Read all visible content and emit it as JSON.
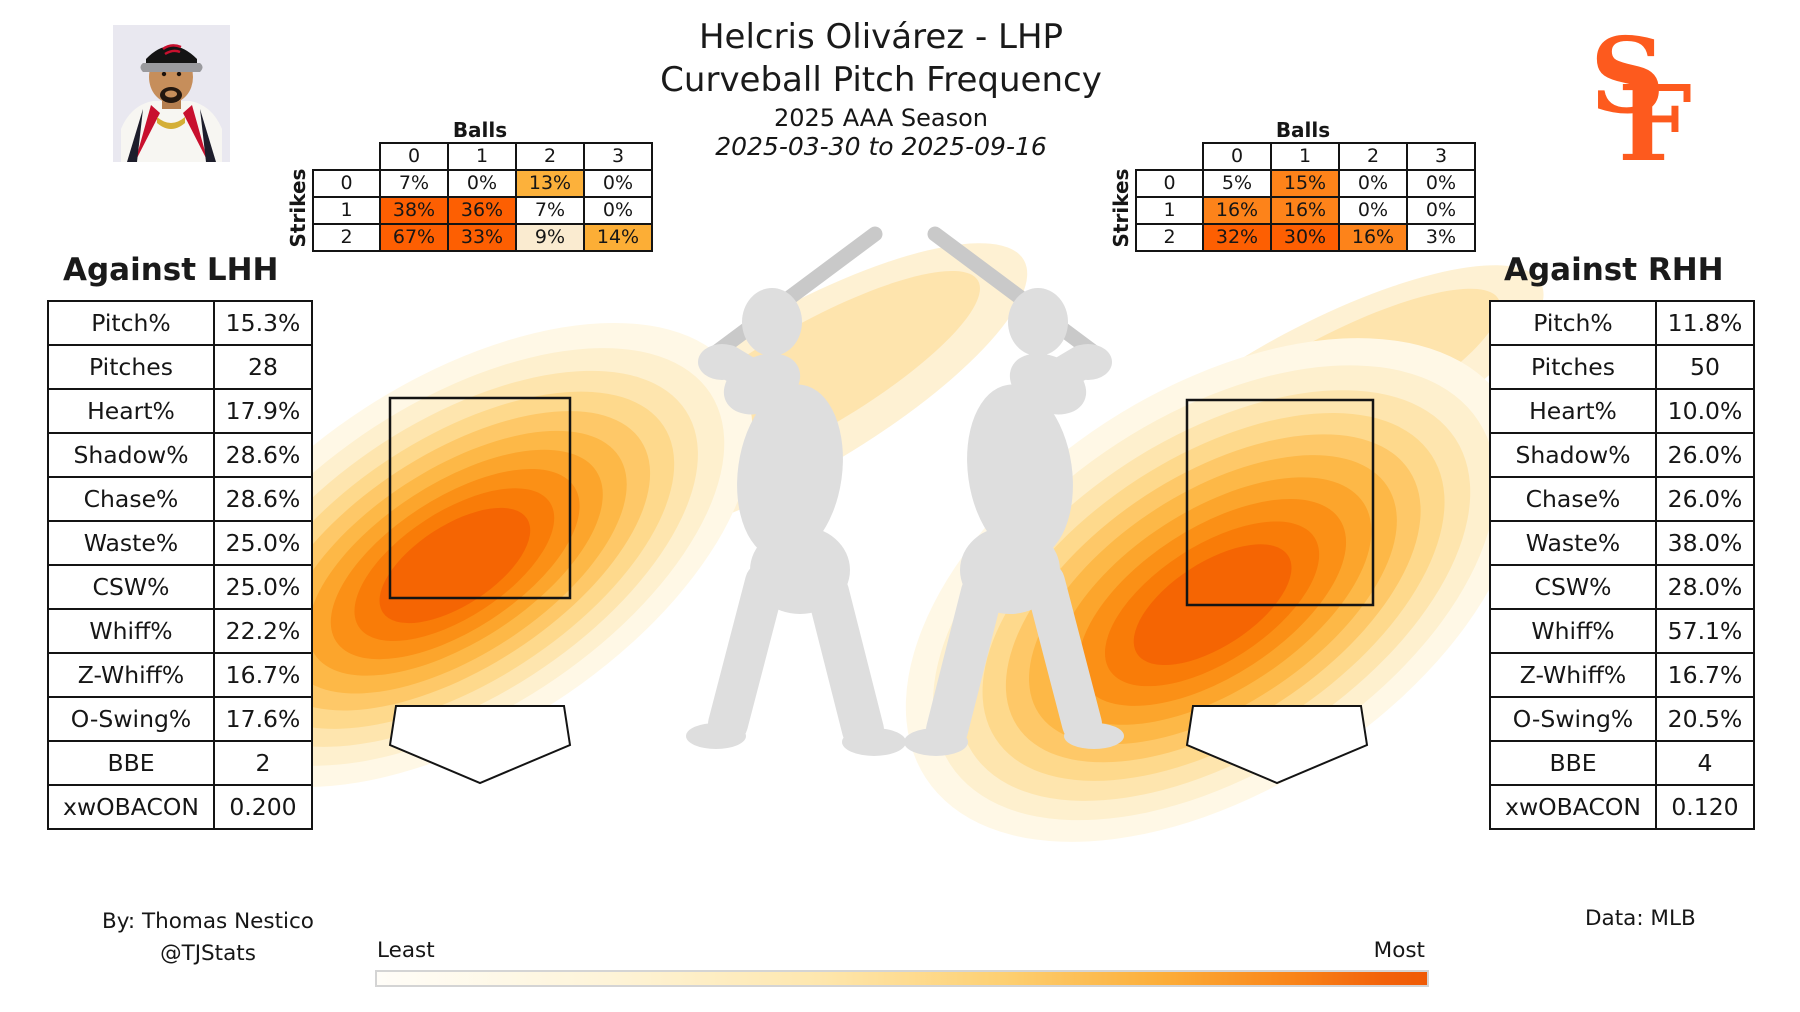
{
  "header": {
    "title_line1": "Helcris Olivárez - LHP",
    "title_line2": "Curveball Pitch Frequency",
    "season_line": "2025 AAA Season",
    "date_range": "2025-03-30 to 2025-09-16",
    "logo_s": "S",
    "logo_f": "F",
    "team_logo_color": "#fd5a1e"
  },
  "count_grids": {
    "balls_label": "Balls",
    "strikes_label": "Strikes",
    "col_headers": [
      "0",
      "1",
      "2",
      "3"
    ],
    "row_headers": [
      "0",
      "1",
      "2"
    ],
    "lhh": {
      "rows": [
        [
          {
            "v": "7%",
            "bg": "#ffffff"
          },
          {
            "v": "0%",
            "bg": "#ffffff"
          },
          {
            "v": "13%",
            "bg": "#fcb13b"
          },
          {
            "v": "0%",
            "bg": "#ffffff"
          }
        ],
        [
          {
            "v": "38%",
            "bg": "#fd5f02"
          },
          {
            "v": "36%",
            "bg": "#fd5f02"
          },
          {
            "v": "7%",
            "bg": "#ffffff"
          },
          {
            "v": "0%",
            "bg": "#ffffff"
          }
        ],
        [
          {
            "v": "67%",
            "bg": "#fd5f02"
          },
          {
            "v": "33%",
            "bg": "#fd5f02"
          },
          {
            "v": "9%",
            "bg": "#faebd0"
          },
          {
            "v": "14%",
            "bg": "#fcae36"
          }
        ]
      ]
    },
    "rhh": {
      "rows": [
        [
          {
            "v": "5%",
            "bg": "#ffffff"
          },
          {
            "v": "15%",
            "bg": "#fd831a"
          },
          {
            "v": "0%",
            "bg": "#ffffff"
          },
          {
            "v": "0%",
            "bg": "#ffffff"
          }
        ],
        [
          {
            "v": "16%",
            "bg": "#fd831a"
          },
          {
            "v": "16%",
            "bg": "#fd831a"
          },
          {
            "v": "0%",
            "bg": "#ffffff"
          },
          {
            "v": "0%",
            "bg": "#ffffff"
          }
        ],
        [
          {
            "v": "32%",
            "bg": "#fd5f02"
          },
          {
            "v": "30%",
            "bg": "#fd5f02"
          },
          {
            "v": "16%",
            "bg": "#fd831a"
          },
          {
            "v": "3%",
            "bg": "#ffffff"
          }
        ]
      ]
    }
  },
  "sides": {
    "lhh": {
      "heading": "Against LHH",
      "stats": [
        [
          "Pitch%",
          "15.3%"
        ],
        [
          "Pitches",
          "28"
        ],
        [
          "Heart%",
          "17.9%"
        ],
        [
          "Shadow%",
          "28.6%"
        ],
        [
          "Chase%",
          "28.6%"
        ],
        [
          "Waste%",
          "25.0%"
        ],
        [
          "CSW%",
          "25.0%"
        ],
        [
          "Whiff%",
          "22.2%"
        ],
        [
          "Z-Whiff%",
          "16.7%"
        ],
        [
          "O-Swing%",
          "17.6%"
        ],
        [
          "BBE",
          "2"
        ],
        [
          "xwOBACON",
          "0.200"
        ]
      ]
    },
    "rhh": {
      "heading": "Against RHH",
      "stats": [
        [
          "Pitch%",
          "11.8%"
        ],
        [
          "Pitches",
          "50"
        ],
        [
          "Heart%",
          "10.0%"
        ],
        [
          "Shadow%",
          "26.0%"
        ],
        [
          "Chase%",
          "26.0%"
        ],
        [
          "Waste%",
          "38.0%"
        ],
        [
          "CSW%",
          "28.0%"
        ],
        [
          "Whiff%",
          "57.1%"
        ],
        [
          "Z-Whiff%",
          "16.7%"
        ],
        [
          "O-Swing%",
          "20.5%"
        ],
        [
          "BBE",
          "4"
        ],
        [
          "xwOBACON",
          "0.120"
        ]
      ]
    }
  },
  "footer": {
    "credit_line1": "By: Thomas Nestico",
    "credit_line2": "@TJStats",
    "legend_least": "Least",
    "legend_most": "Most",
    "data_source": "Data: MLB"
  },
  "palette": {
    "deep_orange": "#f25c05",
    "amber": "#fdb847",
    "cream": "#fee5ae",
    "giants_orange": "#fd5a1e",
    "silhouette_gray": "#dedede",
    "bat_gray": "#c9c9c9"
  },
  "chart_data": [
    {
      "type": "heatmap",
      "name": "pitch_location_density_lhh",
      "title": "Against LHH",
      "subject": "Curveball pitch location frequency vs left-handed hitters (catcher view)",
      "density_peak": "low and arm-side, lower-left quadrant of the strike zone",
      "spread": "diagonal band running from low-left below the zone up toward high-right",
      "legend": [
        "Least",
        "Most"
      ],
      "colormap": [
        "#ffffff",
        "#fee5ae",
        "#fdb847",
        "#f97c08",
        "#f25c05"
      ]
    },
    {
      "type": "heatmap",
      "name": "pitch_location_density_rhh",
      "title": "Against RHH",
      "subject": "Curveball pitch location frequency vs right-handed hitters (catcher view)",
      "density_peak": "low-middle of the strike zone, densest just below zone center",
      "spread": "diagonal band from low-left near batter's feet up toward high-right above the zone",
      "legend": [
        "Least",
        "Most"
      ],
      "colormap": [
        "#ffffff",
        "#fee5ae",
        "#fdb847",
        "#f97c08",
        "#f25c05"
      ]
    },
    {
      "type": "heatmap",
      "name": "count_frequency_lhh",
      "x_label": "Balls",
      "y_label": "Strikes",
      "x_ticks": [
        "0",
        "1",
        "2",
        "3"
      ],
      "y_ticks": [
        "0",
        "1",
        "2"
      ],
      "unit": "%",
      "values": [
        [
          7,
          0,
          13,
          0
        ],
        [
          38,
          36,
          7,
          0
        ],
        [
          67,
          33,
          9,
          14
        ]
      ]
    },
    {
      "type": "heatmap",
      "name": "count_frequency_rhh",
      "x_label": "Balls",
      "y_label": "Strikes",
      "x_ticks": [
        "0",
        "1",
        "2",
        "3"
      ],
      "y_ticks": [
        "0",
        "1",
        "2"
      ],
      "unit": "%",
      "values": [
        [
          5,
          15,
          0,
          0
        ],
        [
          16,
          16,
          0,
          0
        ],
        [
          32,
          30,
          16,
          3
        ]
      ]
    },
    {
      "type": "table",
      "name": "stats_against_lhh",
      "rows": [
        [
          "Pitch%",
          "15.3%"
        ],
        [
          "Pitches",
          "28"
        ],
        [
          "Heart%",
          "17.9%"
        ],
        [
          "Shadow%",
          "28.6%"
        ],
        [
          "Chase%",
          "28.6%"
        ],
        [
          "Waste%",
          "25.0%"
        ],
        [
          "CSW%",
          "25.0%"
        ],
        [
          "Whiff%",
          "22.2%"
        ],
        [
          "Z-Whiff%",
          "16.7%"
        ],
        [
          "O-Swing%",
          "17.6%"
        ],
        [
          "BBE",
          "2"
        ],
        [
          "xwOBACON",
          "0.200"
        ]
      ]
    },
    {
      "type": "table",
      "name": "stats_against_rhh",
      "rows": [
        [
          "Pitch%",
          "11.8%"
        ],
        [
          "Pitches",
          "50"
        ],
        [
          "Heart%",
          "10.0%"
        ],
        [
          "Shadow%",
          "26.0%"
        ],
        [
          "Chase%",
          "26.0%"
        ],
        [
          "Waste%",
          "38.0%"
        ],
        [
          "CSW%",
          "28.0%"
        ],
        [
          "Whiff%",
          "57.1%"
        ],
        [
          "Z-Whiff%",
          "16.7%"
        ],
        [
          "O-Swing%",
          "20.5%"
        ],
        [
          "BBE",
          "4"
        ],
        [
          "xwOBACON",
          "0.120"
        ]
      ]
    }
  ]
}
